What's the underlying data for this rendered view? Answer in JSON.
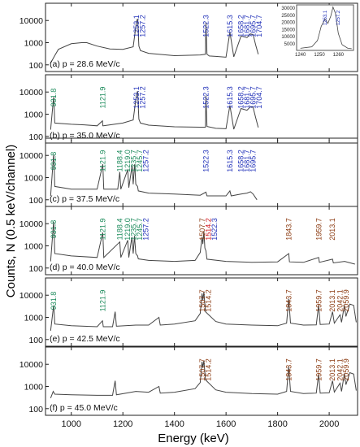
{
  "figure": {
    "ylabel": "Counts, N (0.5 keV/channel)",
    "xlabel": "Energy (keV)",
    "x_ticks": [
      "1000",
      "1200",
      "1400",
      "1600",
      "1800",
      "2000"
    ],
    "y_ticks": [
      "100",
      "1000",
      "10000"
    ],
    "inset_x_ticks": [
      "1240",
      "1250",
      "1260"
    ],
    "inset_y_ticks": [
      "5000",
      "10000",
      "15000",
      "20000",
      "25000",
      "30000"
    ],
    "colors": {
      "blue": "#1f2fb8",
      "green": "#1a8a5a",
      "brown": "#8b3a10",
      "red": "#d0121b",
      "trace": "#444444"
    }
  },
  "chart_data": [
    {
      "type": "line",
      "title": "(a) p = 28.6 MeV/c",
      "xlim": [
        900,
        2110
      ],
      "ylim": [
        50,
        60000
      ],
      "yscale": "log",
      "xlabel": "Energy (keV)",
      "ylabel": "Counts, N (0.5 keV/channel)",
      "x": [
        920,
        935,
        950,
        1000,
        1040,
        1060,
        1100,
        1150,
        1200,
        1240,
        1253,
        1257,
        1262,
        1268,
        1300,
        1400,
        1500,
        1520,
        1522,
        1526,
        1535,
        1560,
        1600,
        1615,
        1630,
        1658,
        1681,
        1695,
        1705,
        1715,
        1725
      ],
      "y": [
        120,
        250,
        500,
        900,
        1000,
        1000,
        700,
        520,
        500,
        650,
        9000,
        12000,
        700,
        440,
        330,
        260,
        280,
        300,
        8000,
        300,
        250,
        240,
        220,
        3000,
        230,
        2000,
        1700,
        2500,
        2300,
        800,
        300
      ],
      "peaks": [
        {
          "label": "1253.1",
          "energy": 1253.1,
          "color": "blue"
        },
        {
          "label": "1257.2",
          "energy": 1257.2,
          "color": "blue"
        },
        {
          "label": "1522.3",
          "energy": 1522.3,
          "color": "blue"
        },
        {
          "label": "1615.3",
          "energy": 1615.3,
          "color": "blue"
        },
        {
          "label": "1658.2",
          "energy": 1658.2,
          "color": "blue"
        },
        {
          "label": "1681.7",
          "energy": 1681.7,
          "color": "blue"
        },
        {
          "label": "1695.7",
          "energy": 1695.7,
          "color": "blue"
        },
        {
          "label": "1704.7",
          "energy": 1704.7,
          "color": "blue"
        }
      ],
      "inset": {
        "xlim": [
          1238,
          1268
        ],
        "ylim": [
          0,
          32000
        ],
        "x": [
          1240,
          1246,
          1249,
          1251,
          1253,
          1254.5,
          1256,
          1257.2,
          1258.5,
          1260,
          1262,
          1265,
          1267
        ],
        "y": [
          1500,
          2500,
          7000,
          17000,
          22000,
          19000,
          24000,
          30500,
          26000,
          12000,
          4000,
          1500,
          1200
        ],
        "labels": [
          "1253.1",
          "1257.2"
        ]
      }
    },
    {
      "type": "line",
      "title": "(b) p = 35.0 MeV/c",
      "xlim": [
        900,
        2110
      ],
      "ylim": [
        50,
        60000
      ],
      "yscale": "log",
      "x": [
        920,
        931,
        932,
        936,
        1000,
        1050,
        1100,
        1121,
        1122,
        1125,
        1200,
        1240,
        1253,
        1257,
        1262,
        1268,
        1300,
        1400,
        1500,
        1520,
        1522,
        1526,
        1560,
        1600,
        1615,
        1630,
        1658,
        1681,
        1695,
        1705,
        1715,
        1725
      ],
      "y": [
        200,
        5000,
        6000,
        400,
        350,
        330,
        300,
        500,
        300,
        300,
        400,
        550,
        8000,
        11000,
        600,
        400,
        320,
        270,
        260,
        260,
        7000,
        280,
        230,
        220,
        2500,
        210,
        1800,
        1500,
        2200,
        2000,
        700,
        250
      ],
      "peaks": [
        {
          "label": "931.8",
          "energy": 931.8,
          "color": "green"
        },
        {
          "label": "1121.9",
          "energy": 1121.9,
          "color": "green"
        },
        {
          "label": "1253.1",
          "energy": 1253.1,
          "color": "blue"
        },
        {
          "label": "1257.2",
          "energy": 1257.2,
          "color": "blue"
        },
        {
          "label": "1522.3",
          "energy": 1522.3,
          "color": "blue"
        },
        {
          "label": "1615.3",
          "energy": 1615.3,
          "color": "blue"
        },
        {
          "label": "1658.2",
          "energy": 1658.2,
          "color": "blue"
        },
        {
          "label": "1681.7",
          "energy": 1681.7,
          "color": "blue"
        },
        {
          "label": "1695.7",
          "energy": 1695.7,
          "color": "blue"
        },
        {
          "label": "1704.7",
          "energy": 1704.7,
          "color": "blue"
        }
      ]
    },
    {
      "type": "line",
      "title": "(c) p = 37.5 MeV/c",
      "xlim": [
        900,
        2110
      ],
      "ylim": [
        50,
        60000
      ],
      "yscale": "log",
      "x": [
        920,
        931,
        932,
        936,
        1000,
        1100,
        1121,
        1122,
        1126,
        1180,
        1188,
        1192,
        1217,
        1219,
        1223,
        1235,
        1236,
        1240,
        1245,
        1246,
        1250,
        1257,
        1260,
        1300,
        1400,
        1500,
        1522,
        1526,
        1600,
        1615,
        1620,
        1658,
        1681,
        1695,
        1705,
        1720
      ],
      "y": [
        150,
        9000,
        11000,
        400,
        300,
        300,
        3500,
        4000,
        300,
        300,
        1800,
        300,
        2000,
        2200,
        350,
        3000,
        3500,
        500,
        3500,
        4000,
        500,
        400,
        250,
        200,
        180,
        160,
        220,
        150,
        150,
        250,
        150,
        180,
        200,
        230,
        180,
        100
      ],
      "peaks": [
        {
          "label": "931.8",
          "energy": 931.8,
          "color": "green"
        },
        {
          "label": "1121.9",
          "energy": 1121.9,
          "color": "green"
        },
        {
          "label": "1188.4",
          "energy": 1188.4,
          "color": "green"
        },
        {
          "label": "1219.0",
          "energy": 1219.0,
          "color": "green"
        },
        {
          "label": "1235.7",
          "energy": 1235.7,
          "color": "green"
        },
        {
          "label": "1245.7",
          "energy": 1245.7,
          "color": "green"
        },
        {
          "label": "1257.2",
          "energy": 1257.2,
          "color": "blue"
        },
        {
          "label": "1522.3",
          "energy": 1522.3,
          "color": "blue"
        },
        {
          "label": "1615.3",
          "energy": 1615.3,
          "color": "blue"
        },
        {
          "label": "1658.2",
          "energy": 1658.2,
          "color": "blue"
        },
        {
          "label": "1681.7",
          "energy": 1681.7,
          "color": "blue"
        },
        {
          "label": "1695.7",
          "energy": 1695.7,
          "color": "blue"
        }
      ]
    },
    {
      "type": "line",
      "title": "(d) p = 40.0 MeV/c",
      "xlim": [
        900,
        2110
      ],
      "ylim": [
        50,
        60000
      ],
      "yscale": "log",
      "x": [
        920,
        931,
        932,
        936,
        1000,
        1100,
        1121,
        1122,
        1126,
        1188,
        1192,
        1219,
        1223,
        1235,
        1240,
        1245,
        1250,
        1257,
        1260,
        1300,
        1400,
        1480,
        1500,
        1507,
        1510,
        1514,
        1518,
        1522,
        1526,
        1600,
        1700,
        1800,
        1843,
        1846,
        1900,
        1959,
        1962,
        2013,
        2016,
        2060,
        2100
      ],
      "y": [
        200,
        10000,
        12000,
        450,
        350,
        300,
        3500,
        4000,
        300,
        1500,
        300,
        1800,
        300,
        2500,
        450,
        2800,
        450,
        350,
        260,
        220,
        200,
        220,
        500,
        2500,
        1200,
        4500,
        800,
        600,
        250,
        200,
        180,
        190,
        450,
        190,
        180,
        300,
        180,
        250,
        170,
        200,
        150
      ],
      "peaks": [
        {
          "label": "931.8",
          "energy": 931.8,
          "color": "green"
        },
        {
          "label": "1121.9",
          "energy": 1121.9,
          "color": "green"
        },
        {
          "label": "1188.4",
          "energy": 1188.4,
          "color": "green"
        },
        {
          "label": "1219.0",
          "energy": 1219.0,
          "color": "green"
        },
        {
          "label": "1235.7",
          "energy": 1235.7,
          "color": "green"
        },
        {
          "label": "1245.7",
          "energy": 1245.7,
          "color": "green"
        },
        {
          "label": "1257.2",
          "energy": 1257.2,
          "color": "blue"
        },
        {
          "label": "1507.7",
          "energy": 1507.7,
          "color": "brown"
        },
        {
          "label": "1514.2",
          "energy": 1514.2,
          "color": "red"
        },
        {
          "label": "1522.3",
          "energy": 1522.3,
          "color": "blue"
        },
        {
          "label": "1843.7",
          "energy": 1843.7,
          "color": "brown"
        },
        {
          "label": "1959.7",
          "energy": 1959.7,
          "color": "brown"
        },
        {
          "label": "2013.1",
          "energy": 2013.1,
          "color": "brown"
        }
      ]
    },
    {
      "type": "line",
      "title": "(e) p = 42.5 MeV/c",
      "xlim": [
        900,
        2110
      ],
      "ylim": [
        50,
        60000
      ],
      "yscale": "log",
      "x": [
        920,
        931,
        932,
        936,
        1000,
        1100,
        1121,
        1124,
        1160,
        1170,
        1175,
        1250,
        1300,
        1340,
        1345,
        1400,
        1480,
        1500,
        1507,
        1510,
        1514,
        1520,
        1560,
        1600,
        1700,
        1800,
        1835,
        1843,
        1850,
        1900,
        1950,
        1959,
        1965,
        2000,
        2013,
        2020,
        2042,
        2048,
        2059,
        2065,
        2080,
        2095,
        2105
      ],
      "y": [
        250,
        3000,
        3500,
        500,
        420,
        380,
        700,
        380,
        380,
        1800,
        400,
        450,
        450,
        1000,
        450,
        500,
        700,
        1500,
        12000,
        6000,
        14000,
        1800,
        650,
        500,
        450,
        420,
        550,
        7000,
        550,
        450,
        460,
        3500,
        480,
        500,
        1800,
        550,
        1300,
        600,
        3500,
        1100,
        4000,
        3500,
        600
      ],
      "peaks": [
        {
          "label": "931.8",
          "energy": 931.8,
          "color": "green"
        },
        {
          "label": "1121.9",
          "energy": 1121.9,
          "color": "green"
        },
        {
          "label": "1507.7",
          "energy": 1507.7,
          "color": "brown"
        },
        {
          "label": "1514.2",
          "energy": 1514.2,
          "color": "brown"
        },
        {
          "label": "1843.7",
          "energy": 1843.7,
          "color": "brown"
        },
        {
          "label": "1959.7",
          "energy": 1959.7,
          "color": "brown"
        },
        {
          "label": "2013.1",
          "energy": 2013.1,
          "color": "brown"
        },
        {
          "label": "2042.1",
          "energy": 2042.1,
          "color": "brown"
        },
        {
          "label": "2059.9",
          "energy": 2059.9,
          "color": "brown"
        }
      ]
    },
    {
      "type": "line",
      "title": "(f) p = 45.0 MeV/c",
      "xlim": [
        900,
        2110
      ],
      "ylim": [
        50,
        60000
      ],
      "yscale": "log",
      "x": [
        920,
        930,
        936,
        1000,
        1100,
        1160,
        1170,
        1175,
        1250,
        1300,
        1340,
        1345,
        1400,
        1480,
        1500,
        1507,
        1510,
        1514,
        1520,
        1560,
        1600,
        1700,
        1800,
        1835,
        1843,
        1850,
        1900,
        1950,
        1959,
        1965,
        2000,
        2013,
        2020,
        2042,
        2048,
        2059,
        2065,
        2080,
        2095,
        2105
      ],
      "y": [
        300,
        600,
        450,
        420,
        400,
        400,
        1800,
        420,
        600,
        550,
        1000,
        500,
        550,
        800,
        1500,
        13000,
        7000,
        15000,
        2000,
        700,
        550,
        480,
        450,
        600,
        8000,
        600,
        480,
        500,
        3500,
        500,
        520,
        1800,
        560,
        1400,
        600,
        3800,
        1200,
        4200,
        3600,
        650
      ],
      "peaks": [
        {
          "label": "1507.7",
          "energy": 1507.7,
          "color": "brown"
        },
        {
          "label": "1514.2",
          "energy": 1514.2,
          "color": "brown"
        },
        {
          "label": "1843.7",
          "energy": 1843.7,
          "color": "brown"
        },
        {
          "label": "1959.7",
          "energy": 1959.7,
          "color": "brown"
        },
        {
          "label": "2013.1",
          "energy": 2013.1,
          "color": "brown"
        },
        {
          "label": "2042.1",
          "energy": 2042.1,
          "color": "brown"
        },
        {
          "label": "2059.9",
          "energy": 2059.9,
          "color": "brown"
        }
      ]
    }
  ]
}
